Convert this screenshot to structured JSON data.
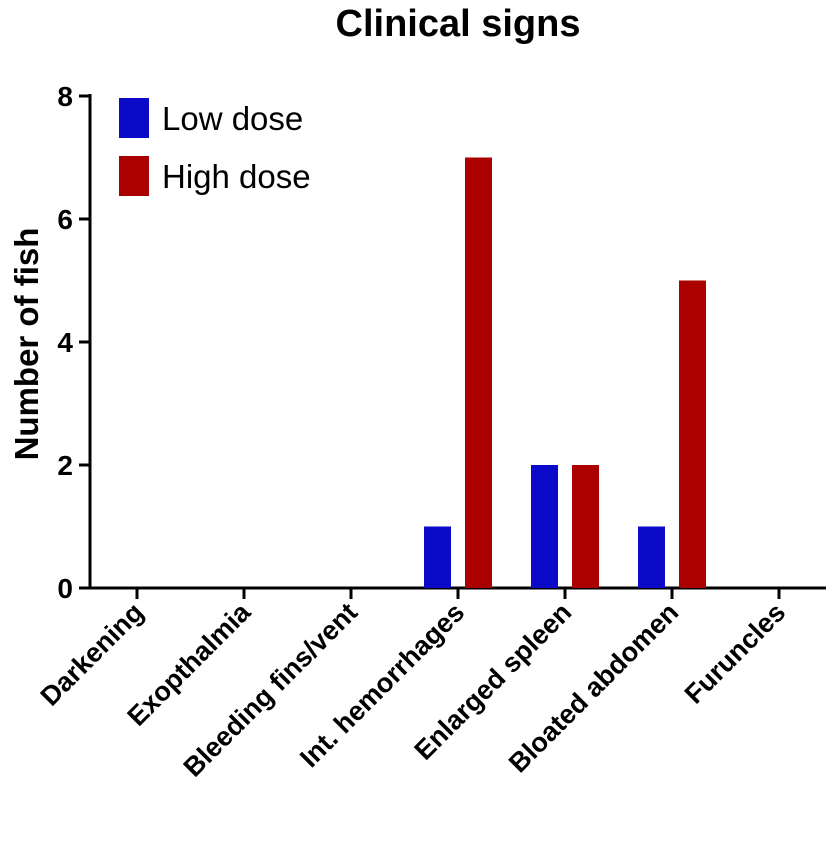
{
  "chart_data": {
    "type": "bar",
    "title": "Clinical signs",
    "xlabel": "",
    "ylabel": "Number of fish",
    "ylim": [
      0,
      8
    ],
    "yticks": [
      0,
      2,
      4,
      6,
      8
    ],
    "grid": false,
    "legend_position": "top-left",
    "categories": [
      "Darkening",
      "Exopthalmia",
      "Bleeding fins/vent",
      "Int. hemorrhages",
      "Enlarged spleen",
      "Bloated abdomen",
      "Furuncles"
    ],
    "series": [
      {
        "name": "Low dose",
        "color": "#0a0ac8",
        "values": [
          0,
          0,
          0,
          1,
          2,
          1,
          0
        ]
      },
      {
        "name": "High dose",
        "color": "#aa0000",
        "values": [
          0,
          0,
          0,
          7,
          2,
          5,
          0
        ]
      }
    ]
  }
}
